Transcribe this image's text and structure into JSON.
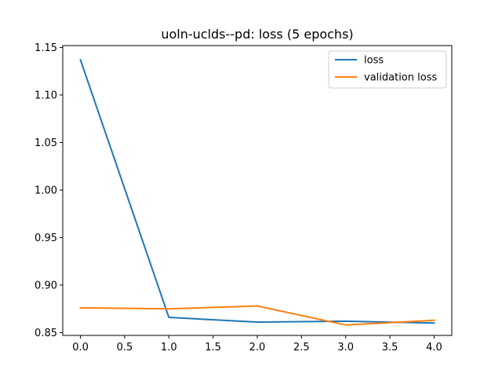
{
  "chart_data": {
    "type": "line",
    "title": "uoln-uclds--pd: loss (5 epochs)",
    "xlabel": "",
    "ylabel": "",
    "x": [
      0,
      1,
      2,
      3,
      4
    ],
    "xlim": [
      -0.2,
      4.2
    ],
    "ylim": [
      0.847,
      1.152
    ],
    "x_ticks": [
      0.0,
      0.5,
      1.0,
      1.5,
      2.0,
      2.5,
      3.0,
      3.5,
      4.0
    ],
    "x_tick_labels": [
      "0.0",
      "0.5",
      "1.0",
      "1.5",
      "2.0",
      "2.5",
      "3.0",
      "3.5",
      "4.0"
    ],
    "y_ticks": [
      0.85,
      0.9,
      0.95,
      1.0,
      1.05,
      1.1,
      1.15
    ],
    "y_tick_labels": [
      "0.85",
      "0.90",
      "0.95",
      "1.00",
      "1.05",
      "1.10",
      "1.15"
    ],
    "grid": false,
    "legend_position": "top-right",
    "series": [
      {
        "name": "loss",
        "color": "#1f77b4",
        "values": [
          1.137,
          0.866,
          0.861,
          0.862,
          0.86
        ]
      },
      {
        "name": "validation loss",
        "color": "#ff7f0e",
        "values": [
          0.876,
          0.875,
          0.878,
          0.858,
          0.863
        ]
      }
    ]
  }
}
